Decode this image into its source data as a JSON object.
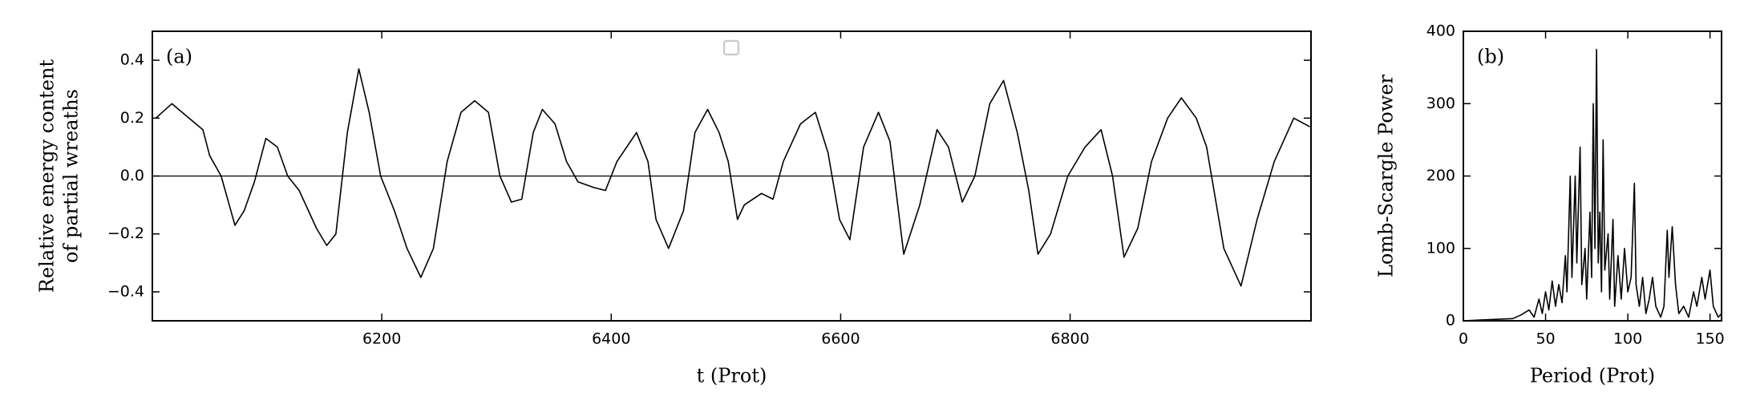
{
  "chart_data": [
    {
      "type": "line",
      "annotation": "(a)",
      "xlabel": "t (Prot)",
      "ylabel": [
        "Relative energy content",
        "of partial wreaths"
      ],
      "xlim": [
        6000,
        7010
      ],
      "ylim": [
        -0.5,
        0.5
      ],
      "xticks": [
        6200,
        6400,
        6600,
        6800
      ],
      "yticks": [
        {
          "value": -0.4,
          "label": "−0.4"
        },
        {
          "value": -0.2,
          "label": "−0.2"
        },
        {
          "value": 0,
          "label": "0.0"
        },
        0.2,
        0.4
      ],
      "hline": 0,
      "color": "#000000",
      "x": [
        6003,
        6017,
        6026,
        6044,
        6050,
        6060,
        6072,
        6080,
        6089,
        6099,
        6109,
        6118,
        6128,
        6143,
        6152,
        6160,
        6170,
        6180,
        6189,
        6199,
        6211,
        6222,
        6234,
        6245,
        6257,
        6269,
        6281,
        6293,
        6303,
        6313,
        6322,
        6332,
        6340,
        6351,
        6361,
        6371,
        6385,
        6395,
        6405,
        6422,
        6432,
        6439,
        6450,
        6463,
        6473,
        6484,
        6494,
        6502,
        6510,
        6516,
        6531,
        6541,
        6550,
        6565,
        6578,
        6589,
        6599,
        6608,
        6620,
        6633,
        6643,
        6655,
        6669,
        6684,
        6694,
        6706,
        6717,
        6730,
        6742,
        6754,
        6764,
        6772,
        6783,
        6798,
        6813,
        6827,
        6837,
        6847,
        6859,
        6871,
        6885,
        6897,
        6910,
        6919,
        6934,
        6949,
        6963,
        6978,
        6995,
        7009
      ],
      "values": [
        0.2,
        0.25,
        0.22,
        0.16,
        0.07,
        0.0,
        -0.17,
        -0.12,
        -0.02,
        0.13,
        0.1,
        0.0,
        -0.05,
        -0.18,
        -0.24,
        -0.2,
        0.15,
        0.37,
        0.22,
        0.0,
        -0.12,
        -0.25,
        -0.35,
        -0.25,
        0.05,
        0.22,
        0.26,
        0.22,
        0.0,
        -0.09,
        -0.08,
        0.15,
        0.23,
        0.18,
        0.05,
        -0.02,
        -0.04,
        -0.05,
        0.05,
        0.15,
        0.05,
        -0.15,
        -0.25,
        -0.12,
        0.15,
        0.23,
        0.15,
        0.05,
        -0.15,
        -0.1,
        -0.06,
        -0.08,
        0.05,
        0.18,
        0.22,
        0.08,
        -0.15,
        -0.22,
        0.1,
        0.22,
        0.12,
        -0.27,
        -0.1,
        0.16,
        0.1,
        -0.09,
        0.0,
        0.25,
        0.33,
        0.15,
        -0.05,
        -0.27,
        -0.2,
        0.0,
        0.1,
        0.16,
        0.0,
        -0.28,
        -0.18,
        0.05,
        0.2,
        0.27,
        0.2,
        0.1,
        -0.25,
        -0.38,
        -0.15,
        0.05,
        0.2,
        0.17
      ]
    },
    {
      "type": "line",
      "annotation": "(b)",
      "xlabel": "Period (Prot)",
      "ylabel": [
        "Lomb-Scargle Power"
      ],
      "xlim": [
        0,
        157
      ],
      "ylim": [
        0,
        400
      ],
      "xticks": [
        0,
        50,
        100,
        150
      ],
      "yticks": [
        0,
        100,
        200,
        300,
        400
      ],
      "color": "#000000",
      "x": [
        0,
        10,
        20,
        30,
        35,
        40,
        43,
        46,
        48,
        50,
        52,
        54,
        56,
        58,
        60,
        62,
        63,
        65,
        66,
        68,
        69,
        71,
        72,
        74,
        75,
        77,
        78,
        79,
        80,
        81,
        82,
        83,
        84,
        85,
        86,
        88,
        89,
        91,
        92,
        94,
        96,
        98,
        100,
        102,
        104,
        105,
        107,
        109,
        111,
        113,
        115,
        117,
        120,
        122,
        124,
        125,
        127,
        129,
        131,
        134,
        137,
        140,
        142,
        145,
        147,
        150,
        152,
        155,
        157
      ],
      "values": [
        0,
        1,
        2,
        3,
        8,
        15,
        5,
        30,
        10,
        40,
        15,
        55,
        20,
        50,
        25,
        90,
        40,
        200,
        60,
        200,
        80,
        240,
        50,
        100,
        30,
        150,
        60,
        300,
        100,
        375,
        80,
        150,
        40,
        250,
        70,
        120,
        30,
        140,
        20,
        90,
        30,
        100,
        40,
        60,
        190,
        50,
        20,
        60,
        10,
        30,
        60,
        20,
        5,
        20,
        125,
        60,
        130,
        50,
        10,
        20,
        5,
        40,
        20,
        60,
        30,
        70,
        20,
        5,
        10
      ]
    }
  ]
}
